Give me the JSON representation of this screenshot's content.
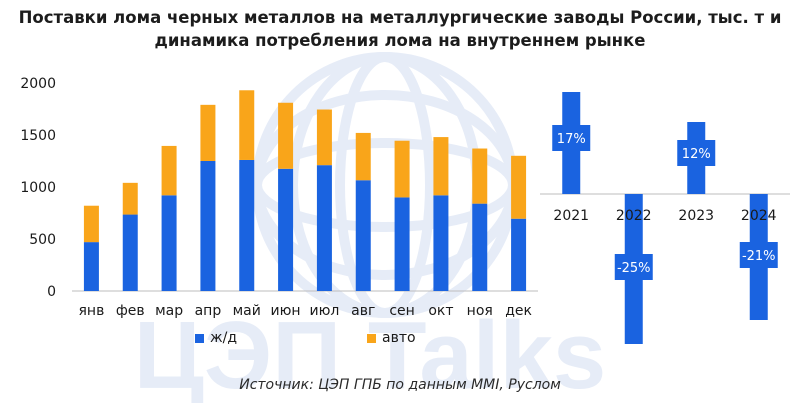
{
  "title_line1": "Поставки лома черных металлов на металлургические заводы России, тыс. т и",
  "title_line2": "динамика потребления лома на внутреннем рынке",
  "source": "Источник: ЦЭП ГПБ по данным MMI, Руслом",
  "watermark_text": "ЦЭП Talks",
  "colors": {
    "rail": "#1a63e0",
    "auto": "#f9a51a",
    "growth_bar": "#1a63e0",
    "text": "#1a1a1a",
    "axis": "#bdbdbd",
    "watermark": "#e6ecf7"
  },
  "chart_data": [
    {
      "type": "bar",
      "stacked": true,
      "categories": [
        "янв",
        "фев",
        "мар",
        "апр",
        "май",
        "июн",
        "июл",
        "авг",
        "сен",
        "окт",
        "ноя",
        "дек"
      ],
      "series": [
        {
          "name": "ж/д",
          "values": [
            470,
            735,
            920,
            1250,
            1260,
            1175,
            1210,
            1065,
            900,
            920,
            840,
            695
          ]
        },
        {
          "name": "авто",
          "values": [
            350,
            305,
            475,
            540,
            670,
            635,
            535,
            455,
            545,
            560,
            530,
            605
          ]
        }
      ],
      "yticks": [
        0,
        500,
        1000,
        1500,
        2000
      ],
      "ylim": [
        0,
        2000
      ],
      "legend_position": "bottom",
      "grid": false
    },
    {
      "type": "bar",
      "categories": [
        "2021",
        "2022",
        "2023",
        "2024"
      ],
      "values": [
        17,
        -25,
        12,
        -21
      ],
      "labels": [
        "17%",
        "-25%",
        "12%",
        "-21%"
      ],
      "ylim": [
        -25,
        17
      ],
      "grid": false
    }
  ]
}
